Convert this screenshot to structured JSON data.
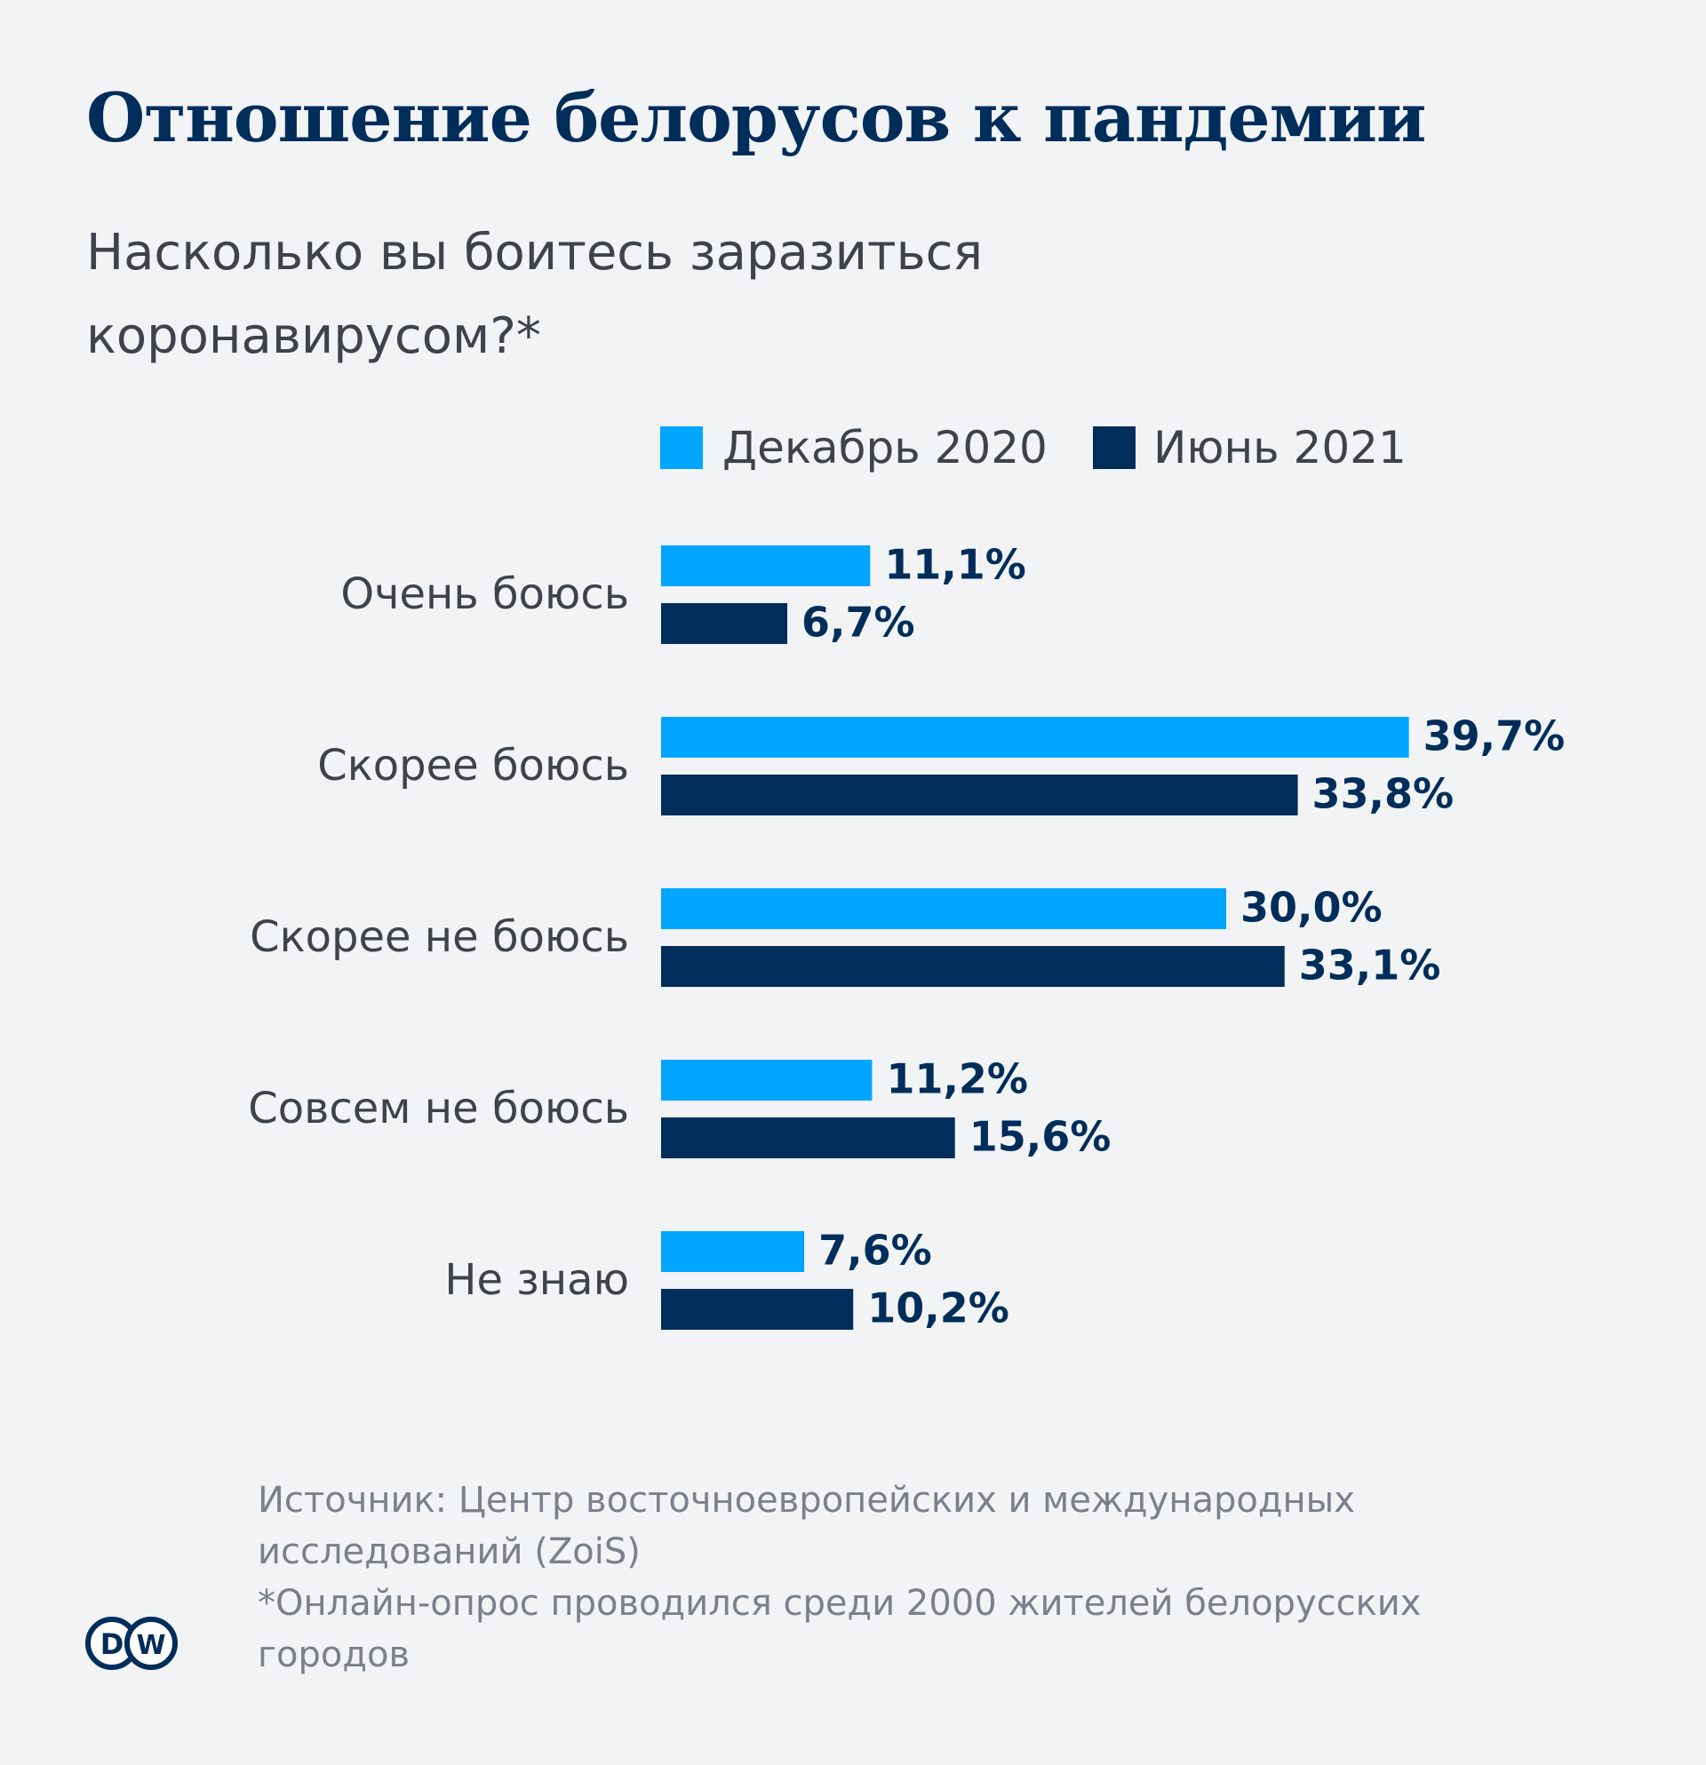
{
  "title": "Отношение белорусов к пандемии",
  "subtitle": "Насколько вы боитесь заразиться коронавирусом?*",
  "colors": {
    "series1": "#00a5ff",
    "series2": "#002d5a",
    "text": "#3d4349",
    "value": "#002d5a"
  },
  "chart_data": {
    "type": "bar",
    "orientation": "horizontal",
    "categories": [
      "Очень боюсь",
      "Скорее боюсь",
      "Скорее не боюсь",
      "Совсем не боюсь",
      "Не знаю"
    ],
    "series": [
      {
        "name": "Декабрь 2020",
        "values": [
          11.1,
          39.7,
          30.0,
          11.2,
          7.6
        ],
        "labels": [
          "11,1%",
          "39,7%",
          "30,0%",
          "11,2%",
          "7,6%"
        ]
      },
      {
        "name": "Июнь 2021",
        "values": [
          6.7,
          33.8,
          33.1,
          15.6,
          10.2
        ],
        "labels": [
          "6,7%",
          "33,8%",
          "33,1%",
          "15,6%",
          "10,2%"
        ]
      }
    ],
    "legend": "top",
    "grid": false
  },
  "source": {
    "line1": "Источник: Центр восточноевропейских и международных исследований (ZoiS)",
    "line2": "*Онлайн-опрос проводился среди 2000 жителей белорусских городов"
  },
  "logo": {
    "text": "DW"
  }
}
